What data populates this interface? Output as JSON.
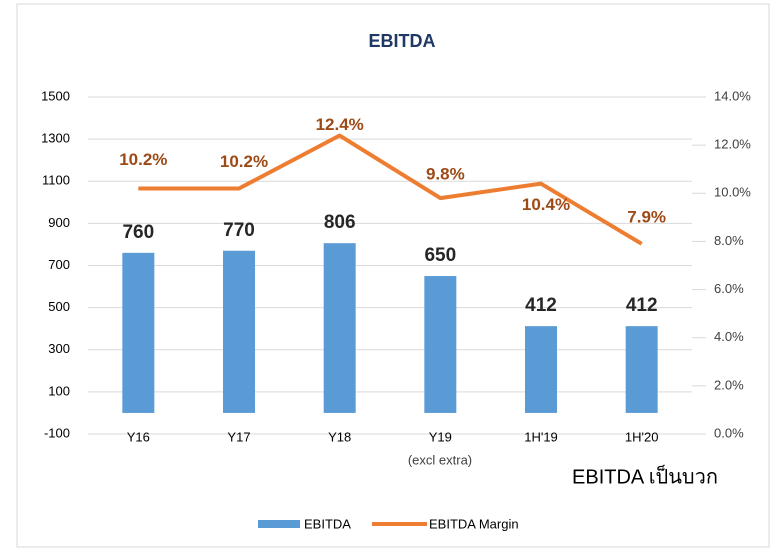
{
  "chart_data": {
    "type": "bar_line",
    "title": "EBITDA",
    "categories": [
      "Y16",
      "Y17",
      "Y18",
      "Y19",
      "1H'19",
      "1H'20"
    ],
    "series": [
      {
        "name": "EBITDA",
        "type": "bar",
        "color": "#5b9bd5",
        "values": [
          760,
          770,
          806,
          650,
          412,
          412
        ]
      },
      {
        "name": "EBITDA Margin",
        "type": "line",
        "axis": "y2",
        "color": "#ed7d31",
        "values": [
          10.2,
          10.2,
          12.4,
          9.8,
          10.4,
          7.9
        ],
        "value_labels": [
          "10.2%",
          "10.2%",
          "12.4%",
          "9.8%",
          "10.4%",
          "7.9%"
        ]
      }
    ],
    "ylim": [
      -100,
      1500
    ],
    "yticks": [
      -100,
      100,
      300,
      500,
      700,
      900,
      1100,
      1300,
      1500
    ],
    "y2lim": [
      0,
      14
    ],
    "y2ticks": [
      {
        "value": 0,
        "label": "0.0%"
      },
      {
        "value": 2,
        "label": "2.0%"
      },
      {
        "value": 4,
        "label": "4.0%"
      },
      {
        "value": 6,
        "label": "6.0%"
      },
      {
        "value": 8,
        "label": "8.0%"
      },
      {
        "value": 10,
        "label": "10.0%"
      },
      {
        "value": 12,
        "label": "12.0%"
      },
      {
        "value": 14,
        "label": "14.0%"
      }
    ],
    "grid": true,
    "legend": "bottom",
    "annotations": [
      "(excl extra)",
      "EBITDA เป็นบวก"
    ]
  }
}
